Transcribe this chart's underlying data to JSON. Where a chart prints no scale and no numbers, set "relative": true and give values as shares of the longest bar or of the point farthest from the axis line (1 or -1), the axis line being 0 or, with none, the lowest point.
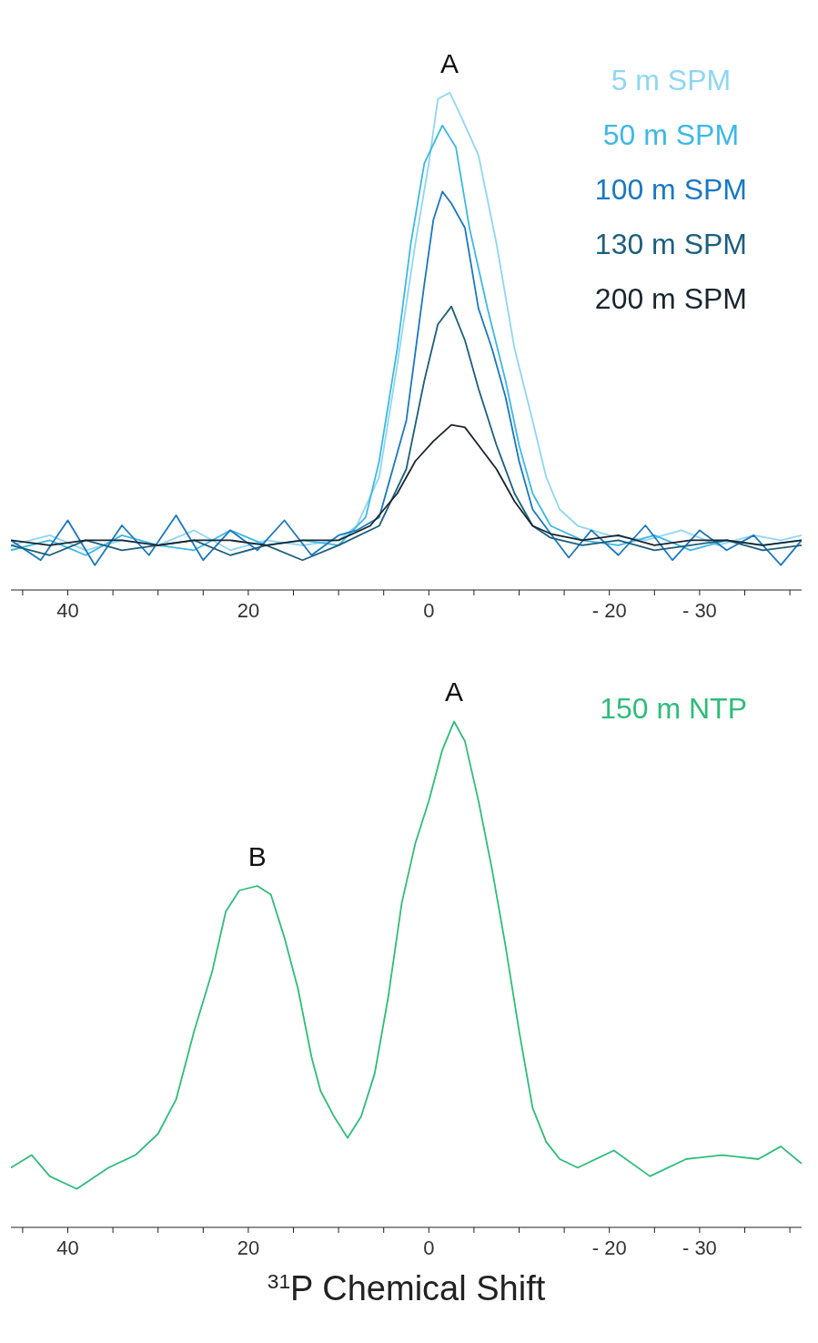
{
  "chart_data": [
    {
      "type": "line",
      "relative": true,
      "legend": "top right",
      "marker": "none",
      "line_style": "solid",
      "xlim": [
        46.3,
        -41.3
      ],
      "xticks": [
        {
          "value": 45,
          "label": null
        },
        40,
        {
          "value": 35,
          "label": null
        },
        {
          "value": 30,
          "label": null
        },
        {
          "value": 25,
          "label": null
        },
        20,
        {
          "value": 15,
          "label": null
        },
        {
          "value": 10,
          "label": null
        },
        {
          "value": 5,
          "label": null
        },
        0,
        {
          "value": -5,
          "label": null
        },
        {
          "value": -10,
          "label": null
        },
        {
          "value": -15,
          "label": null
        },
        {
          "value": -20,
          "label": "- 20"
        },
        {
          "value": -25,
          "label": null
        },
        {
          "value": -30,
          "label": "- 30"
        },
        {
          "value": -35,
          "label": null
        },
        {
          "value": -40,
          "label": null
        }
      ],
      "annotations": [
        {
          "text": "A",
          "x": -2.3,
          "y": 1
        }
      ],
      "series": [
        {
          "name": "5 m SPM",
          "color": "#8fd6f5",
          "x": [
            46.3,
            42,
            38,
            34,
            30,
            26,
            22,
            18,
            14,
            10,
            8,
            5.5,
            3.5,
            1.5,
            0,
            -1,
            -2.3,
            -3.5,
            -5.5,
            -7.5,
            -9.5,
            -11.5,
            -13,
            -14.5,
            -16.5,
            -20,
            -24,
            -28,
            -32,
            -36,
            -39,
            -41.3
          ],
          "values": [
            0.09,
            0.11,
            0.08,
            0.1,
            0.09,
            0.12,
            0.08,
            0.1,
            0.09,
            0.1,
            0.129,
            0.227,
            0.453,
            0.696,
            0.858,
            0.987,
            1,
            0.955,
            0.874,
            0.696,
            0.485,
            0.34,
            0.227,
            0.162,
            0.129,
            0.11,
            0.1,
            0.12,
            0.09,
            0.11,
            0.1,
            0.11
          ]
        },
        {
          "name": "50 m SPM",
          "color": "#3db8e8",
          "x": [
            46.3,
            42,
            38,
            34,
            30,
            26,
            22,
            18,
            14,
            10,
            7,
            5.5,
            3.5,
            2,
            0.5,
            -1.5,
            -3,
            -4.5,
            -6.5,
            -8.5,
            -10,
            -11.5,
            -13.5,
            -17,
            -21,
            -25,
            -29,
            -33,
            -37,
            -41.3
          ],
          "values": [
            0.08,
            0.1,
            0.07,
            0.11,
            0.09,
            0.08,
            0.12,
            0.09,
            0.1,
            0.09,
            0.146,
            0.259,
            0.485,
            0.696,
            0.858,
            0.934,
            0.89,
            0.728,
            0.566,
            0.421,
            0.291,
            0.194,
            0.129,
            0.1,
            0.09,
            0.11,
            0.08,
            0.1,
            0.09,
            0.1
          ]
        },
        {
          "name": "100 m SPM",
          "color": "#1a78c2",
          "x": [
            46.3,
            43,
            40,
            37,
            34,
            31,
            28,
            25,
            22,
            19,
            16,
            13,
            10,
            8,
            5.5,
            2.5,
            0.5,
            -0.5,
            -1.5,
            -2.5,
            -4,
            -5.5,
            -7,
            -8.5,
            -10,
            -11.5,
            -13.5,
            -15.5,
            -18,
            -21,
            -24,
            -27,
            -30,
            -33,
            -36,
            -39,
            -41.3
          ],
          "values": [
            0.1,
            0.06,
            0.14,
            0.05,
            0.13,
            0.07,
            0.15,
            0.06,
            0.12,
            0.08,
            0.14,
            0.07,
            0.11,
            0.12,
            0.146,
            0.34,
            0.615,
            0.744,
            0.801,
            0.777,
            0.728,
            0.566,
            0.485,
            0.388,
            0.259,
            0.162,
            0.113,
            0.065,
            0.12,
            0.07,
            0.13,
            0.06,
            0.12,
            0.08,
            0.11,
            0.05,
            0.1
          ]
        },
        {
          "name": "130 m SPM",
          "color": "#1c5f7c",
          "x": [
            46.3,
            42,
            38,
            34,
            30,
            26,
            22,
            18,
            14,
            10,
            5.5,
            2.5,
            0.5,
            -1,
            -2.5,
            -4,
            -5.5,
            -7.5,
            -9.5,
            -11.5,
            -13.5,
            -17,
            -21,
            -25,
            -29,
            -33,
            -37,
            -41.3
          ],
          "values": [
            0.09,
            0.07,
            0.1,
            0.08,
            0.09,
            0.1,
            0.07,
            0.09,
            0.06,
            0.09,
            0.129,
            0.243,
            0.421,
            0.534,
            0.57,
            0.502,
            0.405,
            0.291,
            0.194,
            0.129,
            0.105,
            0.09,
            0.1,
            0.08,
            0.09,
            0.1,
            0.08,
            0.09
          ]
        },
        {
          "name": "200 m SPM",
          "color": "#1a2530",
          "x": [
            46.3,
            42,
            38,
            34,
            30,
            26,
            22,
            18,
            14,
            10,
            6.5,
            3.5,
            1.5,
            -0.5,
            -2.5,
            -4,
            -5.5,
            -7.5,
            -9.5,
            -11.5,
            -13.5,
            -17,
            -21,
            -25,
            -29,
            -33,
            -37,
            -41.3
          ],
          "values": [
            0.1,
            0.09,
            0.1,
            0.1,
            0.09,
            0.1,
            0.1,
            0.09,
            0.1,
            0.1,
            0.129,
            0.194,
            0.259,
            0.299,
            0.332,
            0.327,
            0.291,
            0.243,
            0.178,
            0.129,
            0.113,
            0.1,
            0.11,
            0.09,
            0.1,
            0.1,
            0.09,
            0.1
          ]
        }
      ]
    },
    {
      "type": "line",
      "relative": true,
      "legend": "top right",
      "marker": "none",
      "line_style": "solid",
      "xlim": [
        46.3,
        -41.3
      ],
      "xlabel": "$^{31}$P Chemical Shift",
      "xticks": [
        {
          "value": 45,
          "label": null
        },
        40,
        {
          "value": 35,
          "label": null
        },
        {
          "value": 30,
          "label": null
        },
        {
          "value": 25,
          "label": null
        },
        20,
        {
          "value": 15,
          "label": null
        },
        {
          "value": 10,
          "label": null
        },
        {
          "value": 5,
          "label": null
        },
        0,
        {
          "value": -5,
          "label": null
        },
        {
          "value": -10,
          "label": null
        },
        {
          "value": -15,
          "label": null
        },
        {
          "value": -20,
          "label": "- 20"
        },
        {
          "value": -25,
          "label": null
        },
        {
          "value": -30,
          "label": "- 30"
        },
        {
          "value": -35,
          "label": null
        },
        {
          "value": -40,
          "label": null
        }
      ],
      "annotations": [
        {
          "text": "A",
          "x": -2.8,
          "y": 1
        },
        {
          "text": "B",
          "x": 19,
          "y": 0.675
        }
      ],
      "series": [
        {
          "name": "150 m NTP",
          "color": "#2ebd7a",
          "x": [
            46.3,
            44,
            42,
            39,
            35.5,
            32.5,
            30,
            28,
            26,
            24,
            22.5,
            21,
            19,
            17.5,
            16,
            14.5,
            13,
            12,
            10.5,
            9,
            7.5,
            6,
            4.5,
            3,
            1.5,
            0,
            -1.5,
            -2.8,
            -4,
            -5.5,
            -7,
            -8.5,
            -10,
            -11.5,
            -13,
            -14.5,
            -16.5,
            -20.5,
            -24.5,
            -28.5,
            -32.5,
            -36.5,
            -39,
            -41.3
          ],
          "values": [
            0.118,
            0.143,
            0.101,
            0.076,
            0.118,
            0.143,
            0.185,
            0.253,
            0.388,
            0.506,
            0.624,
            0.666,
            0.675,
            0.658,
            0.573,
            0.472,
            0.337,
            0.27,
            0.219,
            0.177,
            0.219,
            0.304,
            0.455,
            0.641,
            0.759,
            0.843,
            0.944,
            1,
            0.961,
            0.843,
            0.708,
            0.556,
            0.388,
            0.236,
            0.169,
            0.135,
            0.118,
            0.152,
            0.101,
            0.135,
            0.143,
            0.135,
            0.16,
            0.126
          ]
        }
      ]
    }
  ]
}
